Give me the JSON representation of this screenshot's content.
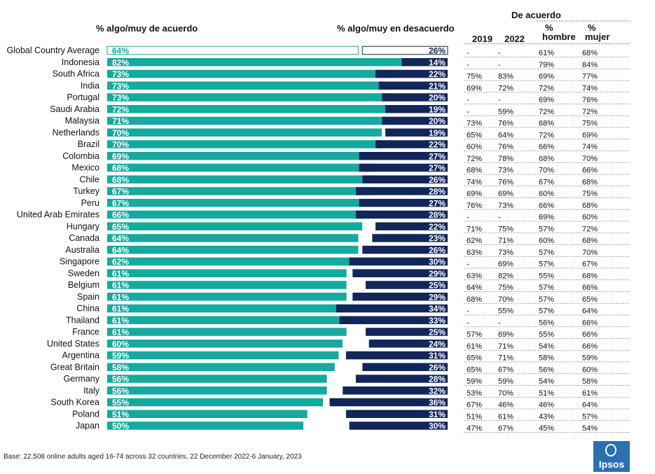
{
  "headers": {
    "agree": "% algo/muy de acuerdo",
    "disagree": "% algo/muy en desacuerdo",
    "de_acuerdo": "De acuerdo",
    "y2019": "2019",
    "y2022": "2022",
    "hombre_pct": "%",
    "hombre": "hombre",
    "mujer_pct": "%",
    "mujer": "mujer"
  },
  "base_note": "Base: 22,508 online adults aged 16-74 across 32 countries, 22 December 2022-6 January, 2023",
  "logo_text": "Ipsos",
  "colors": {
    "agree": "#16a99d",
    "disagree": "#12265a",
    "avg_agree_border": "#16a99d",
    "avg_disagree_border": "#12265a",
    "logo": "#2e6fb0"
  },
  "chart_data": {
    "type": "bar",
    "categories": [
      "Global Country Average",
      "Indonesia",
      "South Africa",
      "India",
      "Portugal",
      "Saudi Arabia",
      "Malaysia",
      "Netherlands",
      "Brazil",
      "Colombia",
      "Mexico",
      "Chile",
      "Turkey",
      "Peru",
      "United Arab Emirates",
      "Hungary",
      "Canada",
      "Australia",
      "Singapore",
      "Sweden",
      "Belgium",
      "Spain",
      "China",
      "Thailand",
      "France",
      "United States",
      "Argentina",
      "Great Britain",
      "Germany",
      "Italy",
      "South Korea",
      "Poland",
      "Japan"
    ],
    "series": [
      {
        "name": "% algo/muy de acuerdo",
        "values": [
          64,
          82,
          73,
          73,
          73,
          72,
          71,
          70,
          70,
          69,
          68,
          68,
          67,
          67,
          66,
          65,
          64,
          64,
          62,
          61,
          61,
          61,
          61,
          61,
          61,
          60,
          59,
          58,
          56,
          56,
          55,
          51,
          50
        ]
      },
      {
        "name": "% algo/muy en desacuerdo",
        "values": [
          26,
          14,
          22,
          21,
          20,
          19,
          20,
          19,
          22,
          27,
          27,
          26,
          28,
          27,
          28,
          22,
          23,
          26,
          30,
          29,
          25,
          29,
          34,
          33,
          25,
          24,
          31,
          26,
          28,
          32,
          36,
          31,
          30
        ]
      }
    ],
    "labels_agree": [
      "64%",
      "82%",
      "73%",
      "73%",
      "73%",
      "72%",
      "71%",
      "70%",
      "70%",
      "69%",
      "68%",
      "68%",
      "67%",
      "67%",
      "66%",
      "65%",
      "64%",
      "64%",
      "62%",
      "61%",
      "61%",
      "61%",
      "61%",
      "61%",
      "61%",
      "60%",
      "59%",
      "58%",
      "56%",
      "56%",
      "55%",
      "51%",
      "50%"
    ],
    "labels_disagree": [
      "26%",
      "14%",
      "22%",
      "21%",
      "20%",
      "19%",
      "20%",
      "19%",
      "22%",
      "27%",
      "27%",
      "26%",
      "28%",
      "27%",
      "28%",
      "22%",
      "23%",
      "26%",
      "30%",
      "29%",
      "25%",
      "29%",
      "34%",
      "33%",
      "25%",
      "24%",
      "31%",
      "26%",
      "28%",
      "32%",
      "36%",
      "31%",
      "30%"
    ],
    "table": {
      "y2019": [
        "-",
        "-",
        "75%",
        "69%",
        "-",
        "-",
        "73%",
        "65%",
        "60%",
        "72%",
        "68%",
        "74%",
        "69%",
        "76%",
        "-",
        "71%",
        "62%",
        "63%",
        "-",
        "63%",
        "64%",
        "68%",
        "-",
        "-",
        "57%",
        "61%",
        "65%",
        "65%",
        "59%",
        "53%",
        "67%",
        "51%",
        "47%"
      ],
      "y2022": [
        "-",
        "-",
        "83%",
        "72%",
        "-",
        "59%",
        "76%",
        "64%",
        "76%",
        "78%",
        "73%",
        "76%",
        "69%",
        "73%",
        "-",
        "75%",
        "71%",
        "73%",
        "69%",
        "82%",
        "75%",
        "70%",
        "55%",
        "-",
        "69%",
        "71%",
        "71%",
        "67%",
        "59%",
        "70%",
        "46%",
        "61%",
        "67%"
      ],
      "hombre": [
        "61%",
        "79%",
        "69%",
        "72%",
        "69%",
        "72%",
        "68%",
        "72%",
        "66%",
        "68%",
        "70%",
        "67%",
        "60%",
        "66%",
        "69%",
        "57%",
        "60%",
        "57%",
        "57%",
        "55%",
        "57%",
        "57%",
        "57%",
        "56%",
        "55%",
        "54%",
        "58%",
        "56%",
        "54%",
        "51%",
        "46%",
        "43%",
        "45%"
      ],
      "mujer": [
        "68%",
        "84%",
        "77%",
        "74%",
        "76%",
        "72%",
        "75%",
        "69%",
        "74%",
        "70%",
        "66%",
        "68%",
        "75%",
        "68%",
        "60%",
        "72%",
        "68%",
        "70%",
        "67%",
        "68%",
        "66%",
        "65%",
        "64%",
        "66%",
        "66%",
        "66%",
        "59%",
        "60%",
        "58%",
        "61%",
        "64%",
        "57%",
        "54%"
      ]
    }
  }
}
